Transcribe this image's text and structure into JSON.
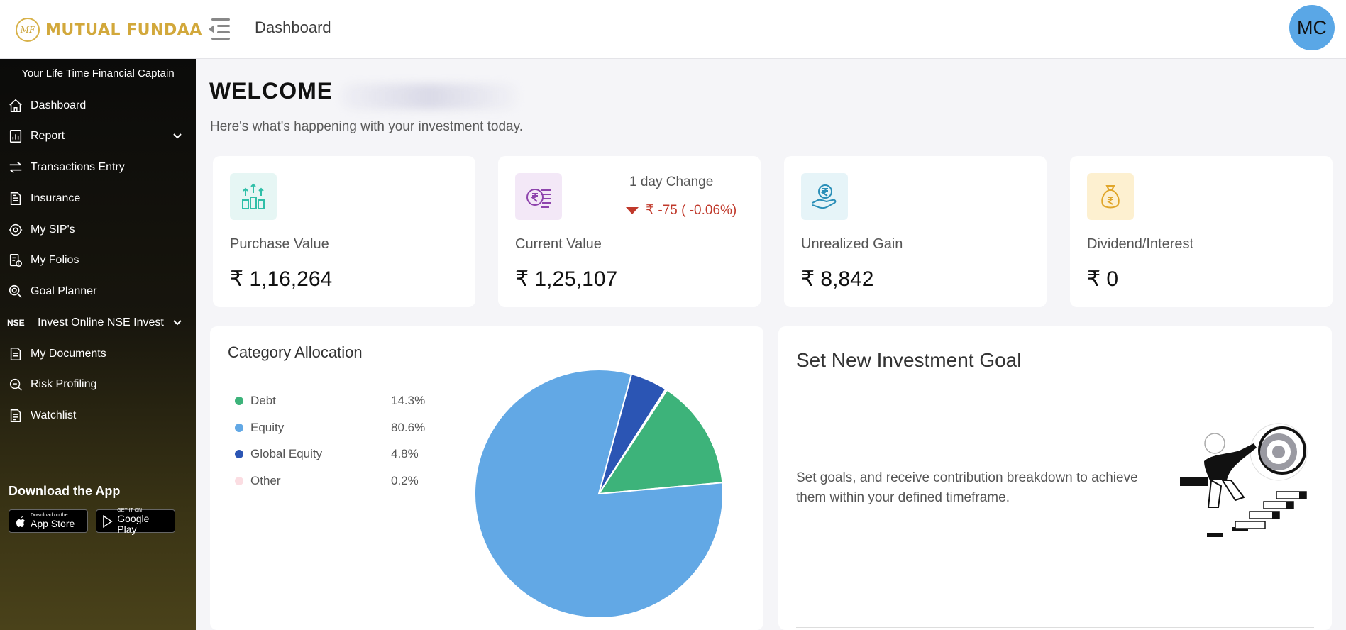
{
  "brand": {
    "logo_text": "MUTUAL FUNDAA",
    "logo_monogram": "MF"
  },
  "header": {
    "page_title": "Dashboard",
    "avatar_initials": "MC"
  },
  "sidebar": {
    "tagline": "Your Life Time Financial Captain",
    "items": [
      {
        "label": "Dashboard",
        "icon": "home-icon"
      },
      {
        "label": "Report",
        "icon": "report-icon",
        "has_submenu": true
      },
      {
        "label": "Transactions Entry",
        "icon": "arrows-swap-icon"
      },
      {
        "label": "Insurance",
        "icon": "document-icon"
      },
      {
        "label": "My SIP's",
        "icon": "sip-icon"
      },
      {
        "label": "My Folios",
        "icon": "folio-icon"
      },
      {
        "label": "Goal Planner",
        "icon": "goal-search-icon"
      },
      {
        "label": "Invest Online NSE Invest",
        "badge": "NSE",
        "has_submenu": true
      },
      {
        "label": "My Documents",
        "icon": "document-icon"
      },
      {
        "label": "Risk Profiling",
        "icon": "risk-icon"
      },
      {
        "label": "Watchlist",
        "icon": "watchlist-icon"
      }
    ],
    "download_title": "Download the App",
    "app_store": {
      "small": "Download on the",
      "big": "App Store"
    },
    "google_play": {
      "small": "GET IT ON",
      "big": "Google Play"
    }
  },
  "welcome": {
    "title": "WELCOME",
    "subtitle": "Here's what's happening with your investment today."
  },
  "stats": [
    {
      "label": "Purchase Value",
      "value": "₹ 1,16,264",
      "icon": "stacked-coins-growth-icon",
      "icon_bg": "#e6f6f4",
      "icon_color": "#2fbfa8"
    },
    {
      "label": "Current Value",
      "value": "₹ 1,25,107",
      "icon": "rupee-coins-icon",
      "icon_bg": "#f3e8f7",
      "icon_color": "#8e44ad",
      "change_label": "1 day Change",
      "change_value": "₹ -75 ( -0.06%)",
      "change_color": "#c0392b"
    },
    {
      "label": "Unrealized Gain",
      "value": "₹ 8,842",
      "icon": "hand-rupee-icon",
      "icon_bg": "#e6f4f8",
      "icon_color": "#2a8fb8"
    },
    {
      "label": "Dividend/Interest",
      "value": "₹ 0",
      "icon": "money-bag-icon",
      "icon_bg": "#fdf0d0",
      "icon_color": "#e0a62a"
    }
  ],
  "allocation": {
    "title": "Category Allocation"
  },
  "chart_data": {
    "type": "pie",
    "categories": [
      "Debt",
      "Equity",
      "Global Equity",
      "Other"
    ],
    "values": [
      14.3,
      80.6,
      4.8,
      0.2
    ],
    "labels": [
      "14.3%",
      "80.6%",
      "4.8%",
      "0.2%"
    ],
    "colors": [
      "#3db37a",
      "#62a8e5",
      "#2b55b4",
      "#fbdde2"
    ],
    "legend_placement": "left"
  },
  "goal": {
    "title": "Set New Investment Goal",
    "text": "Set goals, and receive contribution breakdown to achieve them within your defined timeframe.",
    "illustration": "target-climb-illustration"
  }
}
